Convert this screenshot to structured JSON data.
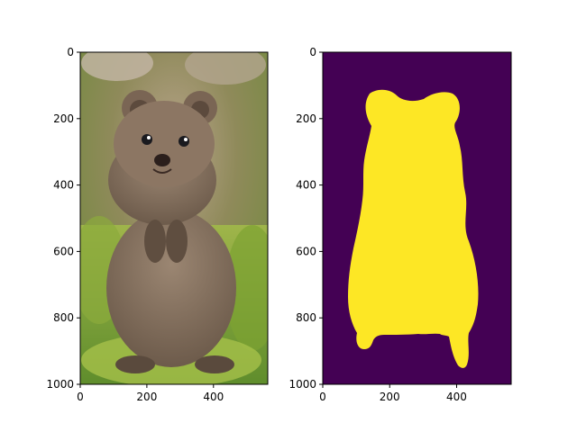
{
  "chart_data": [
    {
      "type": "image",
      "content": "photo of a quokka standing upright on grass",
      "xlim": [
        0,
        563
      ],
      "ylim": [
        1000,
        0
      ],
      "xticks": [
        0,
        200,
        400
      ],
      "yticks": [
        0,
        200,
        400,
        600,
        800,
        1000
      ],
      "grid": false
    },
    {
      "type": "image",
      "content": "binary segmentation mask of the quokka",
      "colormap": "viridis",
      "colors": {
        "background": "#440154",
        "foreground": "#fde725"
      },
      "xlim": [
        0,
        563
      ],
      "ylim": [
        1000,
        0
      ],
      "xticks": [
        0,
        200,
        400
      ],
      "yticks": [
        0,
        200,
        400,
        600,
        800,
        1000
      ],
      "grid": false
    }
  ]
}
